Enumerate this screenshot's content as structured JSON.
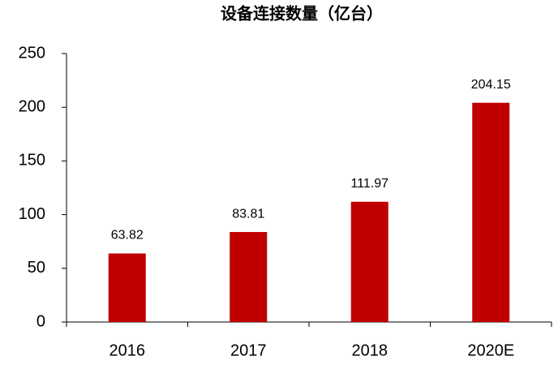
{
  "chart_data": {
    "type": "bar",
    "title": "设备连接数量（亿台）",
    "categories": [
      "2016",
      "2017",
      "2018",
      "2020E"
    ],
    "values": [
      63.82,
      83.81,
      111.97,
      204.15
    ],
    "color": "#c00000",
    "ylim": [
      0,
      250
    ],
    "yticks": [
      0,
      50,
      100,
      150,
      200,
      250
    ],
    "grid": false
  }
}
